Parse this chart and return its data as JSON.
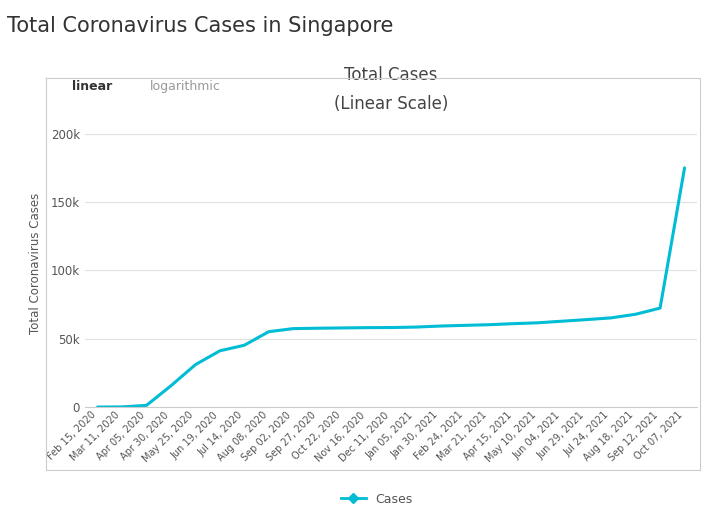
{
  "title": "Total Coronavirus Cases in Singapore",
  "chart_title": "Total Cases",
  "chart_subtitle": "(Linear Scale)",
  "ylabel": "Total Coronavirus Cases",
  "tab1": "linear",
  "tab2": "logarithmic",
  "legend_label": "Cases",
  "line_color": "#00bcd4",
  "background_color": "#ffffff",
  "panel_background": "#ffffff",
  "grid_color": "#e0e0e0",
  "tick_label_color": "#666666",
  "title_color": "#333333",
  "dates": [
    "Feb 15, 2020",
    "Mar 11, 2020",
    "Apr 05, 2020",
    "Apr 30, 2020",
    "May 25, 2020",
    "Jun 19, 2020",
    "Jul 14, 2020",
    "Aug 08, 2020",
    "Sep 02, 2020",
    "Sep 27, 2020",
    "Oct 22, 2020",
    "Nov 16, 2020",
    "Dec 11, 2020",
    "Jan 05, 2021",
    "Jan 30, 2021",
    "Feb 24, 2021",
    "Mar 21, 2021",
    "Apr 15, 2021",
    "May 10, 2021",
    "Jun 04, 2021",
    "Jun 29, 2021",
    "Jul 24, 2021",
    "Aug 18, 2021",
    "Sep 12, 2021",
    "Oct 07, 2021"
  ],
  "values": [
    77,
    178,
    1309,
    15641,
    31068,
    41216,
    45298,
    55212,
    57454,
    57742,
    57948,
    58156,
    58230,
    58569,
    59327,
    59831,
    60304,
    61067,
    61700,
    62884,
    64049,
    65315,
    67953,
    72473,
    175000
  ],
  "yticks": [
    0,
    50000,
    100000,
    150000,
    200000
  ],
  "ytick_labels": [
    "0",
    "50k",
    "100k",
    "150k",
    "200k"
  ],
  "ylim": [
    0,
    210000
  ]
}
